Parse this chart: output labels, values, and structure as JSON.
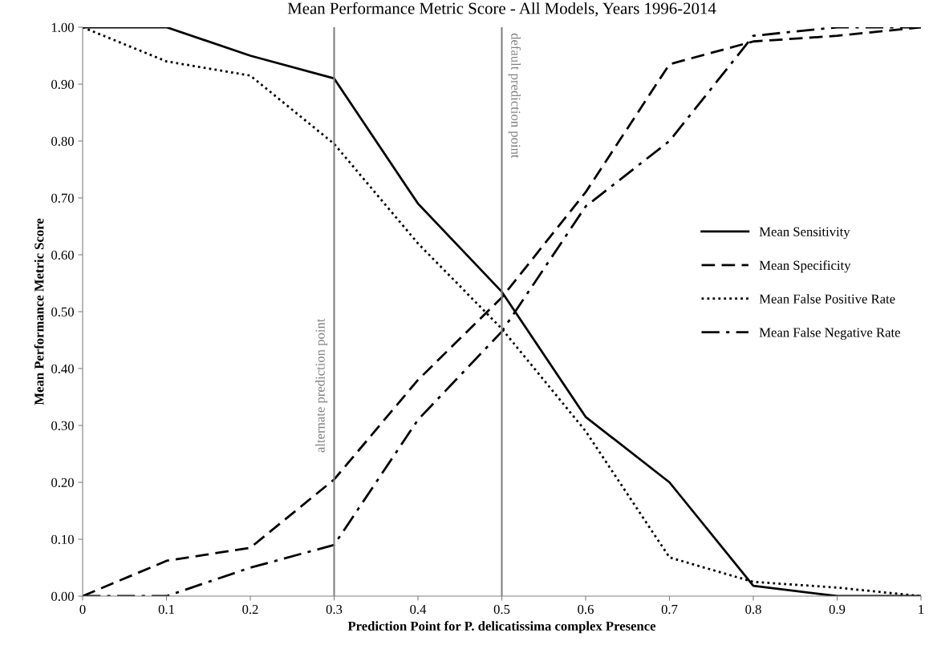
{
  "chart_data": {
    "type": "line",
    "title": "Mean Performance Metric Score - All Models, Years 1996-2014",
    "xlabel": "Prediction Point for P. delicatissima complex Presence",
    "ylabel": "Mean Performance Metric Score",
    "x": [
      0,
      0.1,
      0.2,
      0.3,
      0.4,
      0.5,
      0.6,
      0.7,
      0.8,
      0.9,
      1
    ],
    "series": [
      {
        "name": "Mean Sensitivity",
        "color": "#000000",
        "line_style": "solid",
        "values": [
          1.0,
          1.0,
          0.95,
          0.91,
          0.69,
          0.535,
          0.315,
          0.2,
          0.018,
          0.0,
          0.0
        ]
      },
      {
        "name": "Mean Specificity",
        "color": "#000000",
        "line_style": "dashed",
        "values": [
          0.0,
          0.062,
          0.085,
          0.205,
          0.38,
          0.525,
          0.71,
          0.935,
          0.975,
          0.985,
          1.0
        ]
      },
      {
        "name": "Mean False Positive Rate",
        "color": "#000000",
        "line_style": "dotted",
        "values": [
          1.0,
          0.94,
          0.915,
          0.795,
          0.62,
          0.47,
          0.29,
          0.068,
          0.025,
          0.015,
          0.0
        ]
      },
      {
        "name": "Mean False Negative Rate",
        "color": "#000000",
        "line_style": "dashdot",
        "values": [
          0.0,
          0.0,
          0.05,
          0.09,
          0.31,
          0.465,
          0.685,
          0.8,
          0.985,
          1.0,
          1.0
        ]
      }
    ],
    "ref_lines": [
      {
        "axis": "x",
        "value": 0.3,
        "label": "alternate prediction point",
        "color": "#808080"
      },
      {
        "axis": "x",
        "value": 0.5,
        "label": "default prediction point",
        "color": "#808080"
      }
    ],
    "xlim": [
      0,
      1
    ],
    "xticks": [
      0,
      0.1,
      0.2,
      0.3,
      0.4,
      0.5,
      0.6,
      0.7,
      0.8,
      0.9,
      1
    ],
    "ylim": [
      0,
      1
    ],
    "yticks": [
      {
        "value": 0,
        "label": "0.00"
      },
      {
        "value": 0.1,
        "label": "0.10"
      },
      {
        "value": 0.2,
        "label": "0.20"
      },
      {
        "value": 0.3,
        "label": "0.30"
      },
      {
        "value": 0.4,
        "label": "0.40"
      },
      {
        "value": 0.5,
        "label": "0.50"
      },
      {
        "value": 0.6,
        "label": "0.60"
      },
      {
        "value": 0.7,
        "label": "0.70"
      },
      {
        "value": 0.8,
        "label": "0.80"
      },
      {
        "value": 0.9,
        "label": "0.90"
      },
      {
        "value": 1,
        "label": "1.00"
      }
    ],
    "grid": false,
    "legend": "right",
    "marker": "none"
  }
}
